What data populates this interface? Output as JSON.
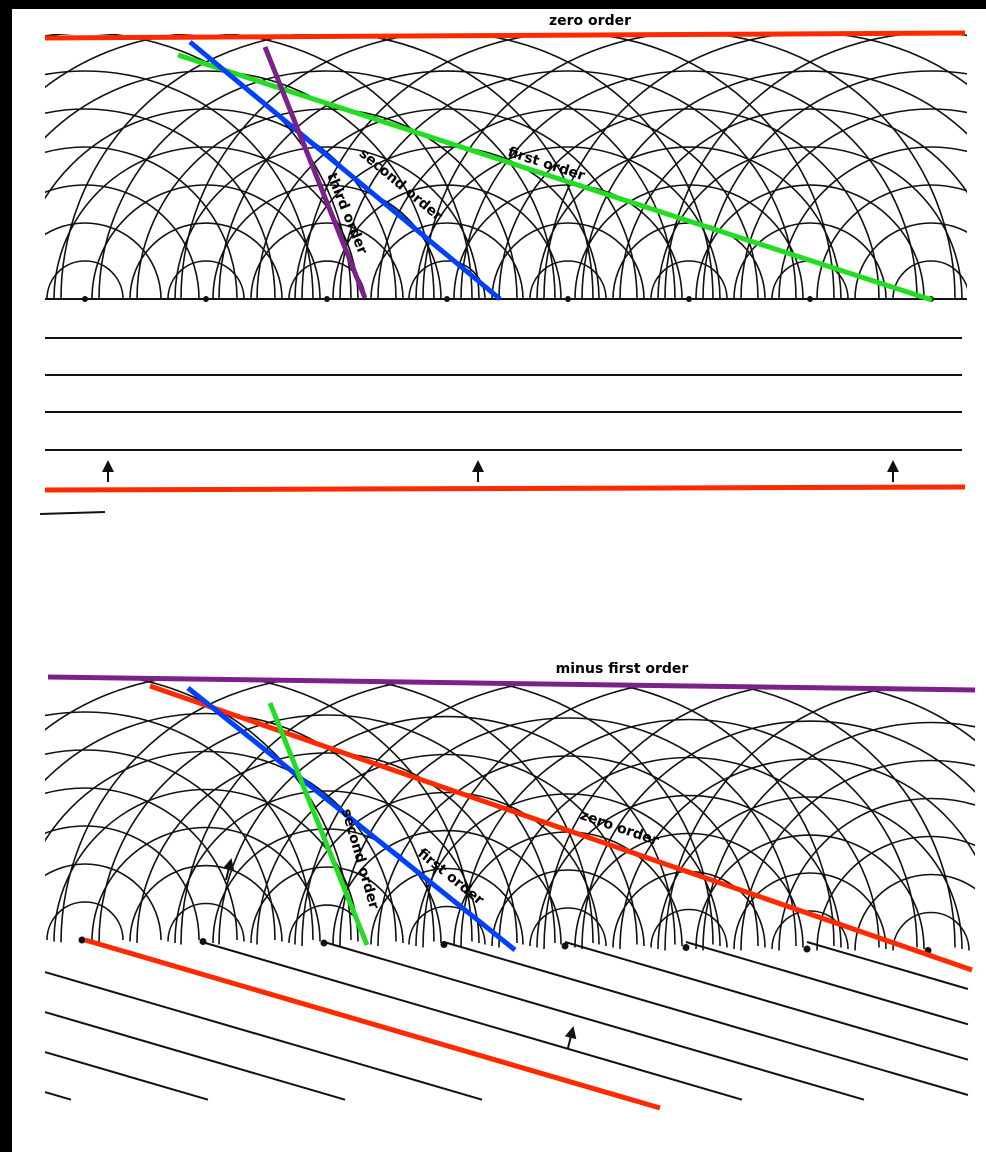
{
  "top_panel": {
    "labels": {
      "zero": "zero order",
      "first": "first order",
      "second": "second order",
      "third": "third order"
    }
  },
  "bottom_panel": {
    "labels": {
      "minus_first": "minus first order",
      "zero": "zero order",
      "first": "first order",
      "second": "second order"
    }
  }
}
